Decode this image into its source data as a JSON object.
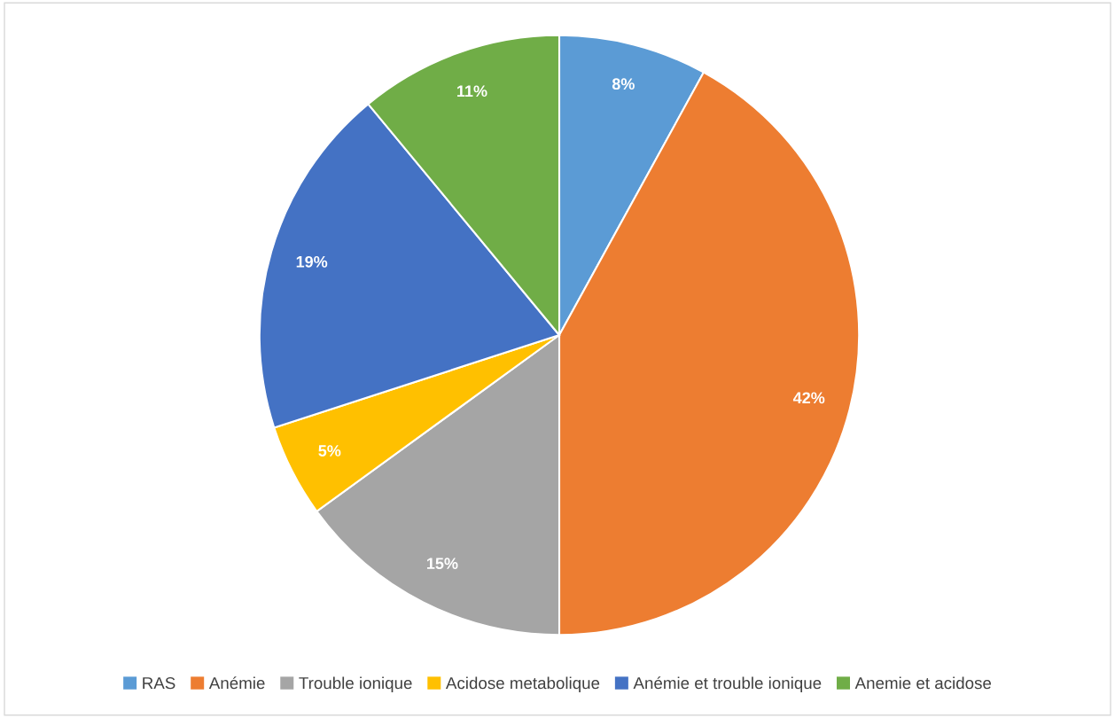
{
  "chart_data": {
    "type": "pie",
    "categories": [
      "RAS",
      "Anémie",
      "Trouble ionique",
      "Acidose metabolique",
      "Anémie et trouble ionique",
      "Anemie et acidose"
    ],
    "values": [
      8,
      42,
      15,
      5,
      19,
      11
    ],
    "colors": [
      "#5b9bd5",
      "#ed7d31",
      "#a5a5a5",
      "#ffc000",
      "#4472c4",
      "#70ad47"
    ],
    "value_labels": [
      "8%",
      "42%",
      "15%",
      "5%",
      "19%",
      "11%"
    ],
    "legend": "bottom"
  }
}
